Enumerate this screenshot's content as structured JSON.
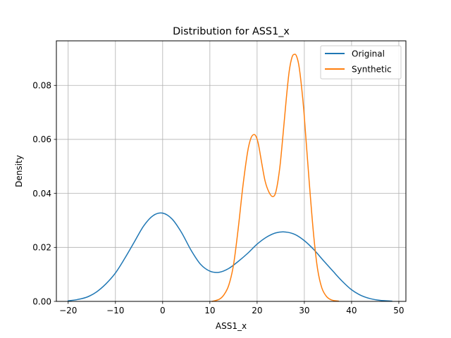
{
  "chart_data": {
    "type": "line",
    "title": "Distribution for ASS1_x",
    "xlabel": "ASS1_x",
    "ylabel": "Density",
    "xlim": [
      -22.5,
      51.5
    ],
    "ylim": [
      0,
      0.0965
    ],
    "xticks": [
      -20,
      -10,
      0,
      10,
      20,
      30,
      40,
      50
    ],
    "xtick_labels": [
      "−20",
      "−10",
      "0",
      "10",
      "20",
      "30",
      "40",
      "50"
    ],
    "yticks": [
      0,
      0.02,
      0.04,
      0.06,
      0.08
    ],
    "ytick_labels": [
      "0.00",
      "0.02",
      "0.04",
      "0.06",
      "0.08"
    ],
    "grid": true,
    "legend_position": "upper-right",
    "series": [
      {
        "name": "Original",
        "color": "#1f77b4",
        "x": [
          -20,
          -18,
          -16,
          -14,
          -12,
          -10,
          -8,
          -6,
          -4,
          -2,
          0,
          2,
          4,
          6,
          8,
          10,
          12,
          14,
          16,
          18,
          20,
          22,
          24,
          26,
          28,
          30,
          32,
          34,
          36,
          38,
          40,
          42,
          44,
          46,
          48.5
        ],
        "y": [
          0.0002,
          0.0007,
          0.0016,
          0.0035,
          0.0065,
          0.0105,
          0.016,
          0.022,
          0.028,
          0.0318,
          0.0327,
          0.0305,
          0.0255,
          0.019,
          0.0138,
          0.0112,
          0.0108,
          0.0122,
          0.0148,
          0.0178,
          0.0212,
          0.0238,
          0.0254,
          0.0257,
          0.0248,
          0.0225,
          0.0192,
          0.0152,
          0.0113,
          0.0075,
          0.0043,
          0.0022,
          0.001,
          0.0004,
          0.0001
        ]
      },
      {
        "name": "Synthetic",
        "color": "#ff7f0e",
        "x": [
          10.5,
          12,
          13,
          14,
          15,
          16,
          17,
          18,
          18.7,
          19.3,
          19.8,
          20.3,
          21,
          21.7,
          22.5,
          23.3,
          24,
          24.8,
          25.5,
          26.2,
          26.8,
          27.4,
          27.9,
          28.3,
          28.8,
          29.3,
          29.9,
          30.5,
          31.2,
          32,
          32.8,
          33.7,
          34.7,
          35.8,
          37.2
        ],
        "y": [
          0.0,
          0.0008,
          0.0025,
          0.006,
          0.0135,
          0.027,
          0.0428,
          0.0555,
          0.0605,
          0.0618,
          0.061,
          0.058,
          0.051,
          0.0445,
          0.0405,
          0.0388,
          0.0408,
          0.0495,
          0.062,
          0.0755,
          0.0853,
          0.0905,
          0.0915,
          0.091,
          0.0878,
          0.0812,
          0.0705,
          0.0565,
          0.0405,
          0.024,
          0.012,
          0.005,
          0.0018,
          0.0005,
          0.0001
        ]
      }
    ]
  }
}
